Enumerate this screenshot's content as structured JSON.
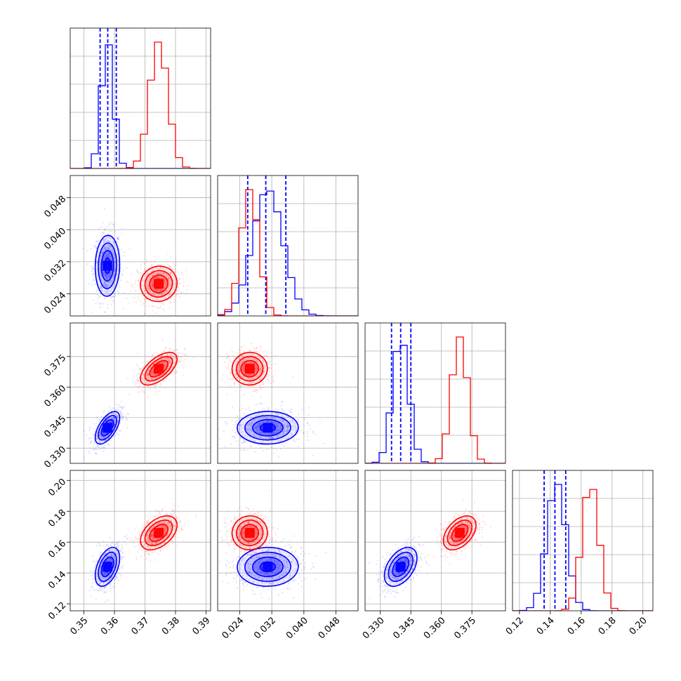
{
  "chart_data": {
    "type": "corner",
    "title": "",
    "parameters": [
      {
        "label": "",
        "range": [
          0.3455,
          0.3915
        ],
        "ticks": [
          "0.35",
          "0.36",
          "0.37",
          "0.38",
          "0.39"
        ]
      },
      {
        "label": "",
        "range": [
          0.0185,
          0.0535
        ],
        "ticks": [
          "0.024",
          "0.032",
          "0.040",
          "0.048"
        ]
      },
      {
        "label": "",
        "range": [
          0.3225,
          0.3915
        ],
        "ticks": [
          "0.330",
          "0.345",
          "0.360",
          "0.375"
        ]
      },
      {
        "label": "",
        "range": [
          0.1155,
          0.2065
        ],
        "ticks": [
          "0.12",
          "0.14",
          "0.16",
          "0.18",
          "0.20"
        ]
      }
    ],
    "grid": true,
    "series": [
      {
        "color": "#0000ff",
        "mean": [
          0.3577,
          0.031,
          0.34,
          0.144
        ],
        "std": [
          0.002,
          0.0038,
          0.004,
          0.0063
        ],
        "quantiles_16_50_84": [
          [
            0.3553,
            0.3578,
            0.3606
          ],
          [
            0.026,
            0.0305,
            0.0355
          ],
          [
            0.3355,
            0.34,
            0.345
          ],
          [
            0.136,
            0.143,
            0.15
          ]
        ]
      },
      {
        "color": "#ff0000",
        "mean": [
          0.3745,
          0.0265,
          0.369,
          0.166
        ],
        "std": [
          0.003,
          0.0022,
          0.004,
          0.0055
        ],
        "quantiles_16_50_84": []
      }
    ]
  }
}
